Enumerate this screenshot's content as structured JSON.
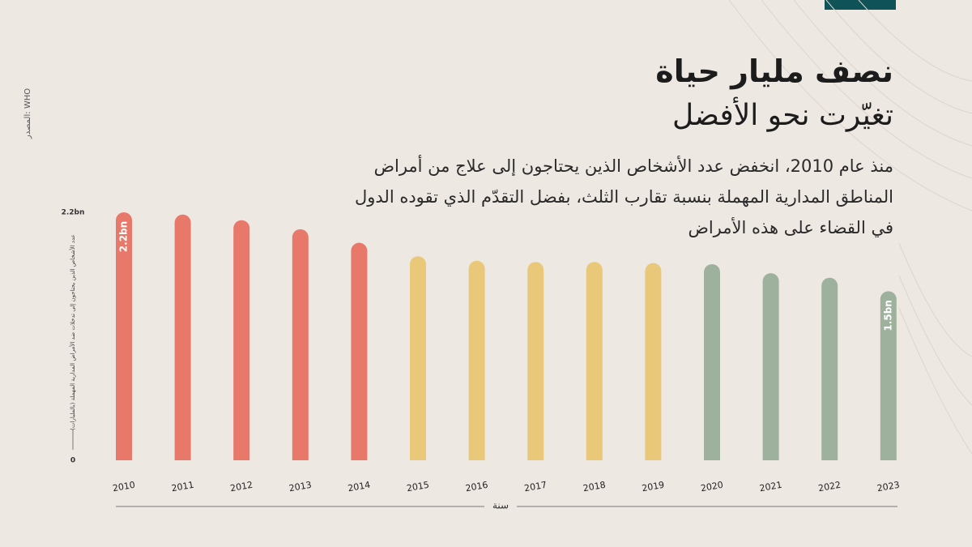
{
  "source": "المصدر: WHO",
  "chart_data": {
    "type": "bar",
    "title": "نصف مليار حياة",
    "subtitle": "تغيّرت نحو الأفضل",
    "description": "منذ عام 2010، انخفض عدد الأشخاص الذين يحتاجون إلى علاج من أمراض المناطق المدارية المهملة بنسبة تقارب الثلث، بفضل التقدّم الذي تقوده الدول في القضاء على هذه الأمراض",
    "y_label": "عدد الأشخاص الذين يحتاجون إلى تدخلات ضد الأمراض المدارية المهملة (بالمليارات)",
    "x_label": "سنة",
    "categories": [
      "2010",
      "2011",
      "2012",
      "2013",
      "2014",
      "2015",
      "2016",
      "2017",
      "2018",
      "2019",
      "2020",
      "2021",
      "2022",
      "2023"
    ],
    "values": [
      2.2,
      2.18,
      2.13,
      2.05,
      1.93,
      1.81,
      1.77,
      1.76,
      1.76,
      1.75,
      1.74,
      1.66,
      1.62,
      1.5
    ],
    "value_labels": [
      "2.2bn",
      null,
      null,
      null,
      null,
      null,
      null,
      null,
      null,
      null,
      null,
      null,
      null,
      "1.5bn"
    ],
    "colors": [
      "#E8796A",
      "#E8796A",
      "#E8796A",
      "#E8796A",
      "#E8796A",
      "#E9C87A",
      "#E9C87A",
      "#E9C87A",
      "#E9C87A",
      "#E9C87A",
      "#9EB19C",
      "#9EB19C",
      "#9EB19C",
      "#9EB19C"
    ],
    "ylim": [
      0,
      2.2
    ],
    "yticks": [
      0,
      {
        "value": 2.2,
        "label": "2.2bn"
      }
    ],
    "grid": false
  }
}
